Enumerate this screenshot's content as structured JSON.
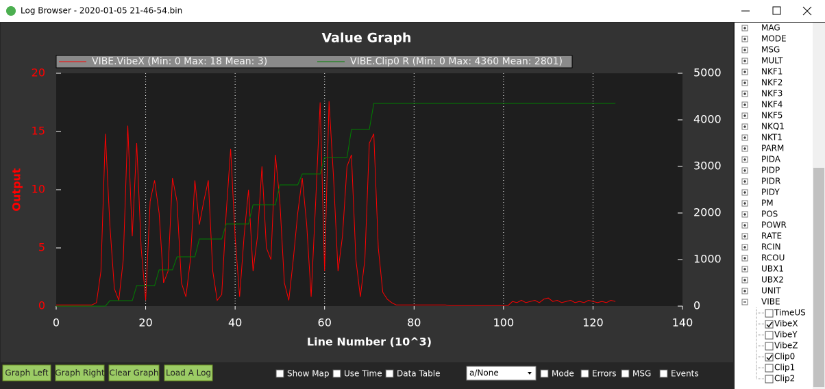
{
  "window": {
    "title": "Log Browser - 2020-01-05 21-46-54.bin"
  },
  "chart_data": {
    "type": "line",
    "title": "Value Graph",
    "xlabel": "Line Number (10^3)",
    "ylabel": "Output",
    "x": [
      0,
      1,
      2,
      3,
      4,
      5,
      6,
      7,
      8,
      9,
      10,
      11,
      12,
      13,
      14,
      15,
      16,
      17,
      18,
      19,
      20,
      21,
      22,
      23,
      24,
      25,
      26,
      27,
      28,
      29,
      30,
      31,
      32,
      33,
      34,
      35,
      36,
      37,
      38,
      39,
      40,
      41,
      42,
      43,
      44,
      45,
      46,
      47,
      48,
      49,
      50,
      51,
      52,
      53,
      54,
      55,
      56,
      57,
      58,
      59,
      60,
      61,
      62,
      63,
      64,
      65,
      66,
      67,
      68,
      69,
      70,
      71,
      72,
      73,
      74,
      75,
      76,
      77,
      78,
      79,
      80,
      81,
      82,
      83,
      84,
      85,
      86,
      87,
      88,
      89,
      90,
      91,
      92,
      93,
      94,
      95,
      96,
      97,
      98,
      99,
      100,
      101,
      102,
      103,
      104,
      105,
      106,
      107,
      108,
      109,
      110,
      111,
      112,
      113,
      114,
      115,
      116,
      117,
      118,
      119,
      120,
      121,
      122,
      123,
      124,
      125
    ],
    "series": [
      {
        "name": "VIBE.VibeX (Min: 0 Max: 18 Mean: 3)",
        "color": "#ff0000",
        "values": [
          0.1,
          0.1,
          0.1,
          0.1,
          0.1,
          0.1,
          0.1,
          0.1,
          0.1,
          0.3,
          3,
          14.8,
          7,
          1.5,
          0.5,
          4,
          15.5,
          6,
          14,
          5,
          0.5,
          9,
          10.8,
          8,
          2,
          3,
          11,
          9,
          2,
          0.8,
          4,
          10.8,
          7,
          9,
          10.8,
          3,
          0.5,
          1,
          8,
          13.5,
          6,
          0.8,
          6,
          10,
          3,
          6,
          12,
          5,
          4,
          13,
          9,
          2,
          0.5,
          4,
          8,
          11,
          7,
          0.8,
          9,
          17.5,
          3,
          17.6,
          11,
          3,
          6,
          12,
          13,
          4,
          0.8,
          4,
          14,
          14.8,
          5,
          1.2,
          0.6,
          0.3,
          0.1,
          0.1,
          0.1,
          0.1,
          0.1,
          0.1,
          0.1,
          0.1,
          0.1,
          0.1,
          0.1,
          0.1,
          0.05,
          0.05,
          0.05,
          0.05,
          0.05,
          0.05,
          0.05,
          0.05,
          0.05,
          0.05,
          0.05,
          0.05,
          0.05,
          0.05,
          0.4,
          0.3,
          0.5,
          0.3,
          0.4,
          0.5,
          0.3,
          0.6,
          0.7,
          0.4,
          0.5,
          0.3,
          0.4,
          0.5,
          0.3,
          0.4,
          0.3,
          0.5,
          0.4,
          0.3,
          0.4,
          0.3,
          0.5,
          0.4
        ]
      },
      {
        "name": "VIBE.Clip0 R (Min: 0 Max: 4360 Mean: 2801)",
        "color": "#008000",
        "axis": "y2",
        "values": [
          0,
          0,
          0,
          0,
          0,
          0,
          0,
          0,
          0,
          0,
          0,
          0,
          118,
          118,
          118,
          118,
          118,
          118,
          441,
          441,
          441,
          441,
          441,
          779,
          779,
          779,
          779,
          1059,
          1059,
          1059,
          1059,
          1059,
          1441,
          1441,
          1441,
          1441,
          1441,
          1441,
          1765,
          1765,
          1765,
          1765,
          1765,
          1765,
          2176,
          2176,
          2176,
          2176,
          2176,
          2176,
          2603,
          2603,
          2603,
          2603,
          2603,
          2838,
          2838,
          2838,
          2838,
          2838,
          3191,
          3191,
          3191,
          3191,
          3191,
          3191,
          3794,
          3794,
          3794,
          3794,
          3794,
          4353,
          4353,
          4353,
          4353,
          4353,
          4353,
          4353,
          4353,
          4353,
          4353,
          4353,
          4353,
          4353,
          4353,
          4353,
          4353,
          4353,
          4353,
          4353,
          4353,
          4353,
          4353,
          4353,
          4353,
          4353,
          4353,
          4353,
          4353,
          4353,
          4353,
          4353,
          4353,
          4353,
          4353,
          4353,
          4353,
          4353,
          4353,
          4353,
          4353,
          4353,
          4353,
          4353,
          4353,
          4353,
          4353,
          4353,
          4353,
          4353,
          4353,
          4353,
          4353,
          4353,
          4353,
          4353
        ]
      }
    ],
    "xlim": [
      0,
      140
    ],
    "xticks": [
      0,
      20,
      40,
      60,
      80,
      100,
      120,
      140
    ],
    "ylim": [
      0,
      20
    ],
    "yticks": [
      0,
      5,
      10,
      15,
      20
    ],
    "y2lim": [
      0,
      5000
    ],
    "y2ticks": [
      0,
      1000,
      2000,
      3000,
      4000,
      5000
    ],
    "grid": true
  },
  "buttons": [
    "Graph Left",
    "Graph Right",
    "Clear Graph",
    "Load A Log"
  ],
  "options": [
    {
      "label": "Show Map",
      "checked": false
    },
    {
      "label": "Use Time",
      "checked": false
    },
    {
      "label": "Data Table",
      "checked": false
    }
  ],
  "dropdown": "a/None",
  "filters": [
    {
      "label": "Mode",
      "checked": false
    },
    {
      "label": "Errors",
      "checked": false
    },
    {
      "label": "MSG",
      "checked": false
    },
    {
      "label": "Events",
      "checked": false
    }
  ],
  "tree": {
    "items": [
      "MAG",
      "MODE",
      "MSG",
      "MULT",
      "NKF1",
      "NKF2",
      "NKF3",
      "NKF4",
      "NKF5",
      "NKQ1",
      "NKT1",
      "PARM",
      "PIDA",
      "PIDP",
      "PIDR",
      "PIDY",
      "PM",
      "POS",
      "POWR",
      "RATE",
      "RCIN",
      "RCOU",
      "UBX1",
      "UBX2",
      "UNIT",
      "VIBE"
    ],
    "children": [
      {
        "label": "TimeUS",
        "checked": false
      },
      {
        "label": "VibeX",
        "checked": true
      },
      {
        "label": "VibeY",
        "checked": false
      },
      {
        "label": "VibeZ",
        "checked": false
      },
      {
        "label": "Clip0",
        "checked": true
      },
      {
        "label": "Clip1",
        "checked": false
      },
      {
        "label": "Clip2",
        "checked": false
      }
    ]
  }
}
